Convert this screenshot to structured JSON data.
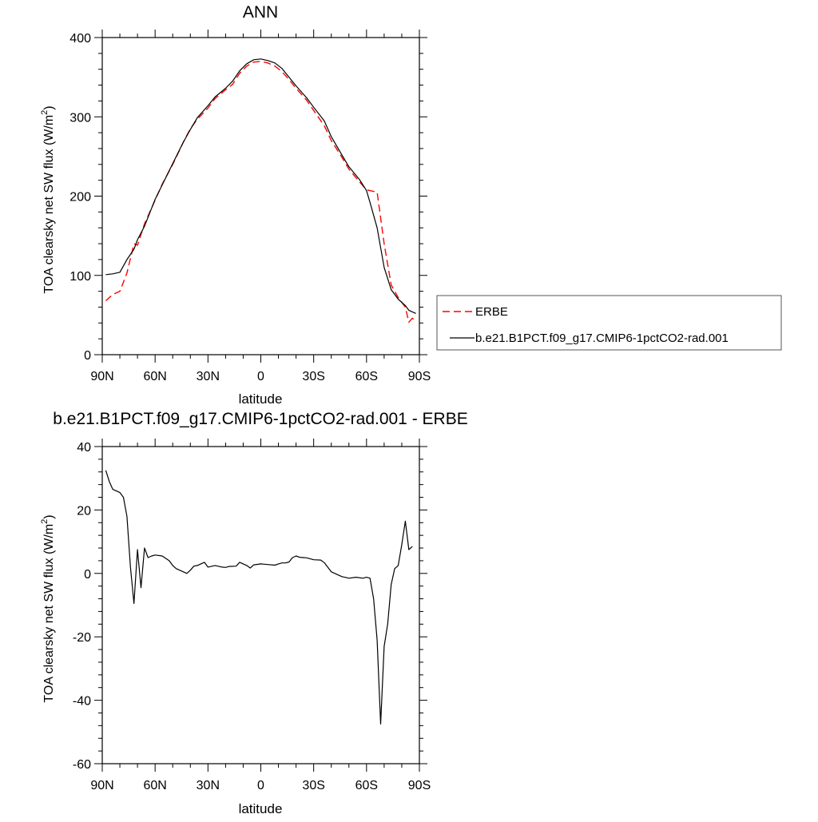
{
  "chart_data": [
    {
      "type": "line",
      "title": "ANN",
      "xlabel": "latitude",
      "ylabel": "TOA clearsky net SW flux (W/m",
      "ylabel_sup": "2",
      "ylabel_close": ")",
      "xlim": [
        90,
        -90
      ],
      "ylim": [
        0,
        400
      ],
      "x_ticks": [
        90,
        60,
        30,
        0,
        -30,
        -60,
        -90
      ],
      "x_tick_labels": [
        "90N",
        "60N",
        "30N",
        "0",
        "30S",
        "60S",
        "90S"
      ],
      "y_ticks": [
        0,
        100,
        200,
        300,
        400
      ],
      "y_tick_labels": [
        "0",
        "100",
        "200",
        "300",
        "400"
      ],
      "legend_placement": "right",
      "series": [
        {
          "name": "ERBE",
          "color": "#ff0000",
          "dash": "dashed",
          "x": [
            88,
            84,
            80,
            76,
            72,
            70,
            66,
            60,
            56,
            50,
            44,
            40,
            36,
            30,
            26,
            20,
            16,
            12,
            8,
            4,
            0,
            -4,
            -8,
            -12,
            -16,
            -20,
            -26,
            -30,
            -36,
            -40,
            -46,
            -50,
            -56,
            -60,
            -62,
            -66,
            -70,
            -74,
            -78,
            -82,
            -84,
            -86,
            -88
          ],
          "y": [
            68,
            76,
            80,
            103,
            140,
            138,
            165,
            195,
            215,
            240,
            268,
            285,
            297,
            311,
            323,
            334,
            341,
            355,
            364,
            369,
            370,
            368,
            364,
            357,
            347,
            336,
            321,
            308,
            289,
            270,
            249,
            234,
            218,
            208,
            207,
            205,
            140,
            88,
            72,
            60,
            41,
            46,
            42
          ]
        },
        {
          "name": "b.e21.B1PCT.f09_g17.CMIP6-1pctCO2-rad.001",
          "color": "#000000",
          "dash": "solid",
          "x": [
            88,
            84,
            80,
            76,
            72,
            70,
            66,
            60,
            56,
            50,
            44,
            40,
            36,
            30,
            26,
            20,
            16,
            12,
            8,
            4,
            0,
            -4,
            -8,
            -12,
            -16,
            -20,
            -26,
            -30,
            -36,
            -40,
            -46,
            -50,
            -56,
            -60,
            -62,
            -66,
            -70,
            -74,
            -78,
            -82,
            -84,
            -86,
            -88
          ],
          "y": [
            101,
            102,
            104,
            120,
            133,
            145,
            162,
            196,
            214,
            241,
            268,
            284,
            299,
            314,
            325,
            336,
            345,
            358,
            367,
            372,
            373,
            371,
            368,
            361,
            350,
            339,
            324,
            312,
            295,
            275,
            252,
            237,
            221,
            207,
            192,
            160,
            110,
            82,
            70,
            62,
            56,
            54,
            52
          ]
        }
      ]
    },
    {
      "type": "line",
      "title": "b.e21.B1PCT.f09_g17.CMIP6-1pctCO2-rad.001 - ERBE",
      "xlabel": "latitude",
      "ylabel": "TOA clearsky net SW flux (W/m",
      "ylabel_sup": "2",
      "ylabel_close": ")",
      "xlim": [
        90,
        -90
      ],
      "ylim": [
        -60,
        40
      ],
      "x_ticks": [
        90,
        60,
        30,
        0,
        -30,
        -60,
        -90
      ],
      "x_tick_labels": [
        "90N",
        "60N",
        "30N",
        "0",
        "30S",
        "60S",
        "90S"
      ],
      "y_ticks": [
        -60,
        -40,
        -20,
        0,
        20,
        40
      ],
      "y_tick_labels": [
        "-60",
        "-40",
        "-20",
        "0",
        "20",
        "40"
      ],
      "series": [
        {
          "color": "#000000",
          "dash": "solid",
          "x": [
            88,
            86,
            84,
            80,
            78,
            76,
            74,
            72,
            70,
            68,
            66,
            64,
            62,
            60,
            56,
            52,
            50,
            48,
            46,
            42,
            40,
            38,
            36,
            32,
            30,
            26,
            22,
            20,
            18,
            14,
            12,
            8,
            6,
            4,
            0,
            -2,
            -4,
            -8,
            -10,
            -12,
            -14,
            -16,
            -18,
            -20,
            -22,
            -26,
            -30,
            -34,
            -36,
            -40,
            -44,
            -46,
            -50,
            -54,
            -58,
            -60,
            -62,
            -64,
            -66,
            -68,
            -70,
            -72,
            -74,
            -76,
            -78,
            -80,
            -82,
            -84,
            -86
          ],
          "y": [
            32.5,
            29,
            26.5,
            25.5,
            24,
            18,
            2,
            -9.5,
            7.5,
            -4.5,
            8,
            5,
            5.5,
            5.8,
            5.5,
            4,
            2.5,
            1.5,
            1,
            0,
            1,
            2.3,
            2.5,
            3.5,
            2,
            2.5,
            2,
            1.9,
            2.2,
            2.3,
            3.5,
            2.5,
            1.7,
            2.7,
            3,
            2.9,
            2.8,
            2.6,
            3,
            3.3,
            3.3,
            3.6,
            5,
            5.5,
            5.1,
            4.9,
            4.3,
            4.2,
            3.4,
            0.5,
            -0.5,
            -1,
            -1.5,
            -1.2,
            -1.5,
            -1.2,
            -1.5,
            -8,
            -21,
            -47.5,
            -23,
            -16,
            -3.5,
            1.5,
            2.5,
            9,
            16.5,
            7.5,
            8.5
          ]
        }
      ]
    }
  ]
}
